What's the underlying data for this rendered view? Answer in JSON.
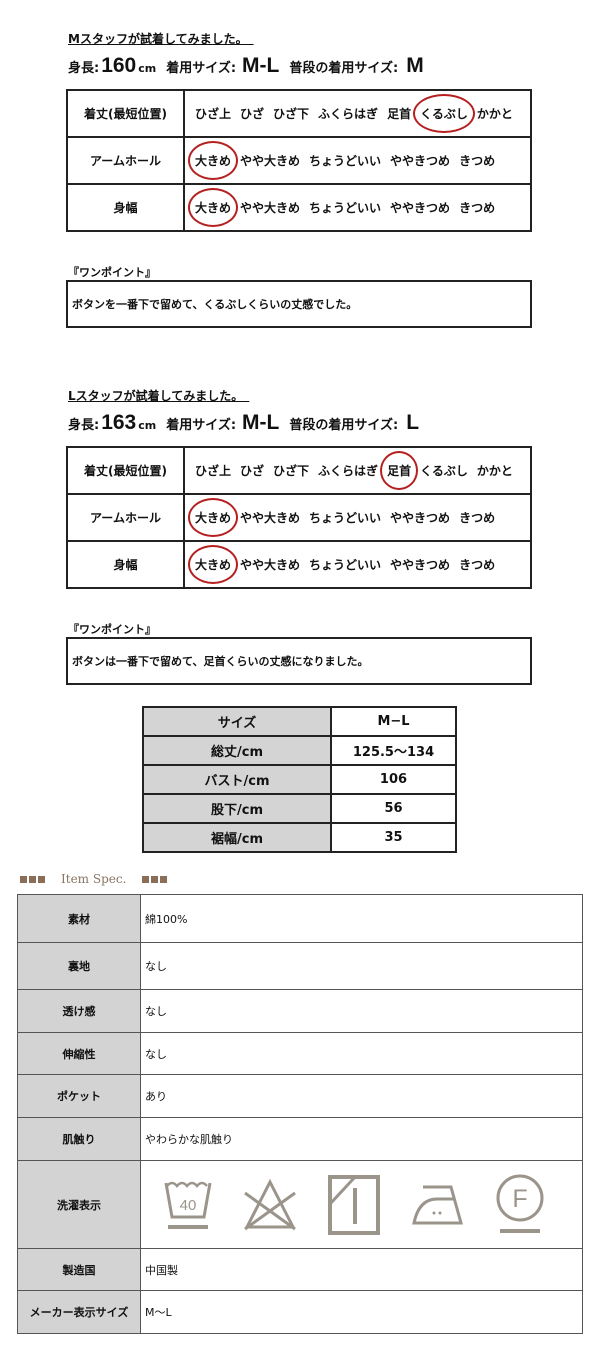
{
  "m_staff": {
    "title": "Mスタッフが試着してみました。　",
    "height_label": "身長:",
    "height": "160",
    "unit": "cm",
    "size_label": "着用サイズ:",
    "size": "M-L",
    "usual_label": "普段の着用サイズ:",
    "usual": "M",
    "rows": [
      {
        "label": "着丈(最短位置)",
        "options": [
          "ひざ上",
          "ひざ",
          "ひざ下",
          "ふくらはぎ",
          "足首",
          "くるぶし",
          "かかと"
        ],
        "selected": "くるぶし"
      },
      {
        "label": "アームホール",
        "options": [
          "大きめ",
          "やや大きめ",
          "ちょうどいい",
          "ややきつめ",
          "きつめ"
        ],
        "selected": "大きめ"
      },
      {
        "label": "身幅",
        "options": [
          "大きめ",
          "やや大きめ",
          "ちょうどいい",
          "ややきつめ",
          "きつめ"
        ],
        "selected": "大きめ"
      }
    ],
    "onepoint_label": "『ワンポイント』",
    "onepoint": "ボタンを一番下で留めて、くるぶしくらいの丈感でした。"
  },
  "l_staff": {
    "title": "Lスタッフが試着してみました。　",
    "height_label": "身長:",
    "height": "163",
    "unit": "cm",
    "size_label": "着用サイズ:",
    "size": "M-L",
    "usual_label": "普段の着用サイズ:",
    "usual": "L",
    "rows": [
      {
        "label": "着丈(最短位置)",
        "options": [
          "ひざ上",
          "ひざ",
          "ひざ下",
          "ふくらはぎ",
          "足首",
          "くるぶし",
          "かかと"
        ],
        "selected": "足首"
      },
      {
        "label": "アームホール",
        "options": [
          "大きめ",
          "やや大きめ",
          "ちょうどいい",
          "ややきつめ",
          "きつめ"
        ],
        "selected": "大きめ"
      },
      {
        "label": "身幅",
        "options": [
          "大きめ",
          "やや大きめ",
          "ちょうどいい",
          "ややきつめ",
          "きつめ"
        ],
        "selected": "大きめ"
      }
    ],
    "onepoint_label": "『ワンポイント』",
    "onepoint": "ボタンは一番下で留めて、足首くらいの丈感になりました。"
  },
  "size_table": {
    "header": [
      "サイズ",
      "M−L"
    ],
    "rows": [
      [
        "総丈/cm",
        "125.5〜134"
      ],
      [
        "バスト/cm",
        "106"
      ],
      [
        "股下/cm",
        "56"
      ],
      [
        "裾幅/cm",
        "35"
      ]
    ]
  },
  "spec": {
    "heading": "Item Spec.",
    "rows": [
      [
        "素材",
        "綿100%"
      ],
      [
        "裏地",
        "なし"
      ],
      [
        "透け感",
        "なし"
      ],
      [
        "伸縮性",
        "なし"
      ],
      [
        "ポケット",
        "あり"
      ],
      [
        "肌触り",
        "やわらかな肌触り"
      ],
      [
        "洗濯表示",
        ""
      ],
      [
        "製造国",
        "中国製"
      ],
      [
        "メーカー表示サイズ",
        "M〜L"
      ]
    ],
    "care_icons": [
      "wash-40-icon",
      "no-bleach-icon",
      "shade-dry-icon",
      "iron-low-icon",
      "dry-clean-f-icon"
    ],
    "care_wash_temp": "40",
    "care_dryclean_letter": "F",
    "icon_color": "#9b948a"
  },
  "colors": {
    "circle": "#b52020",
    "header_gray": "#d4d4d4",
    "accent_brown": "#8a6e58"
  }
}
